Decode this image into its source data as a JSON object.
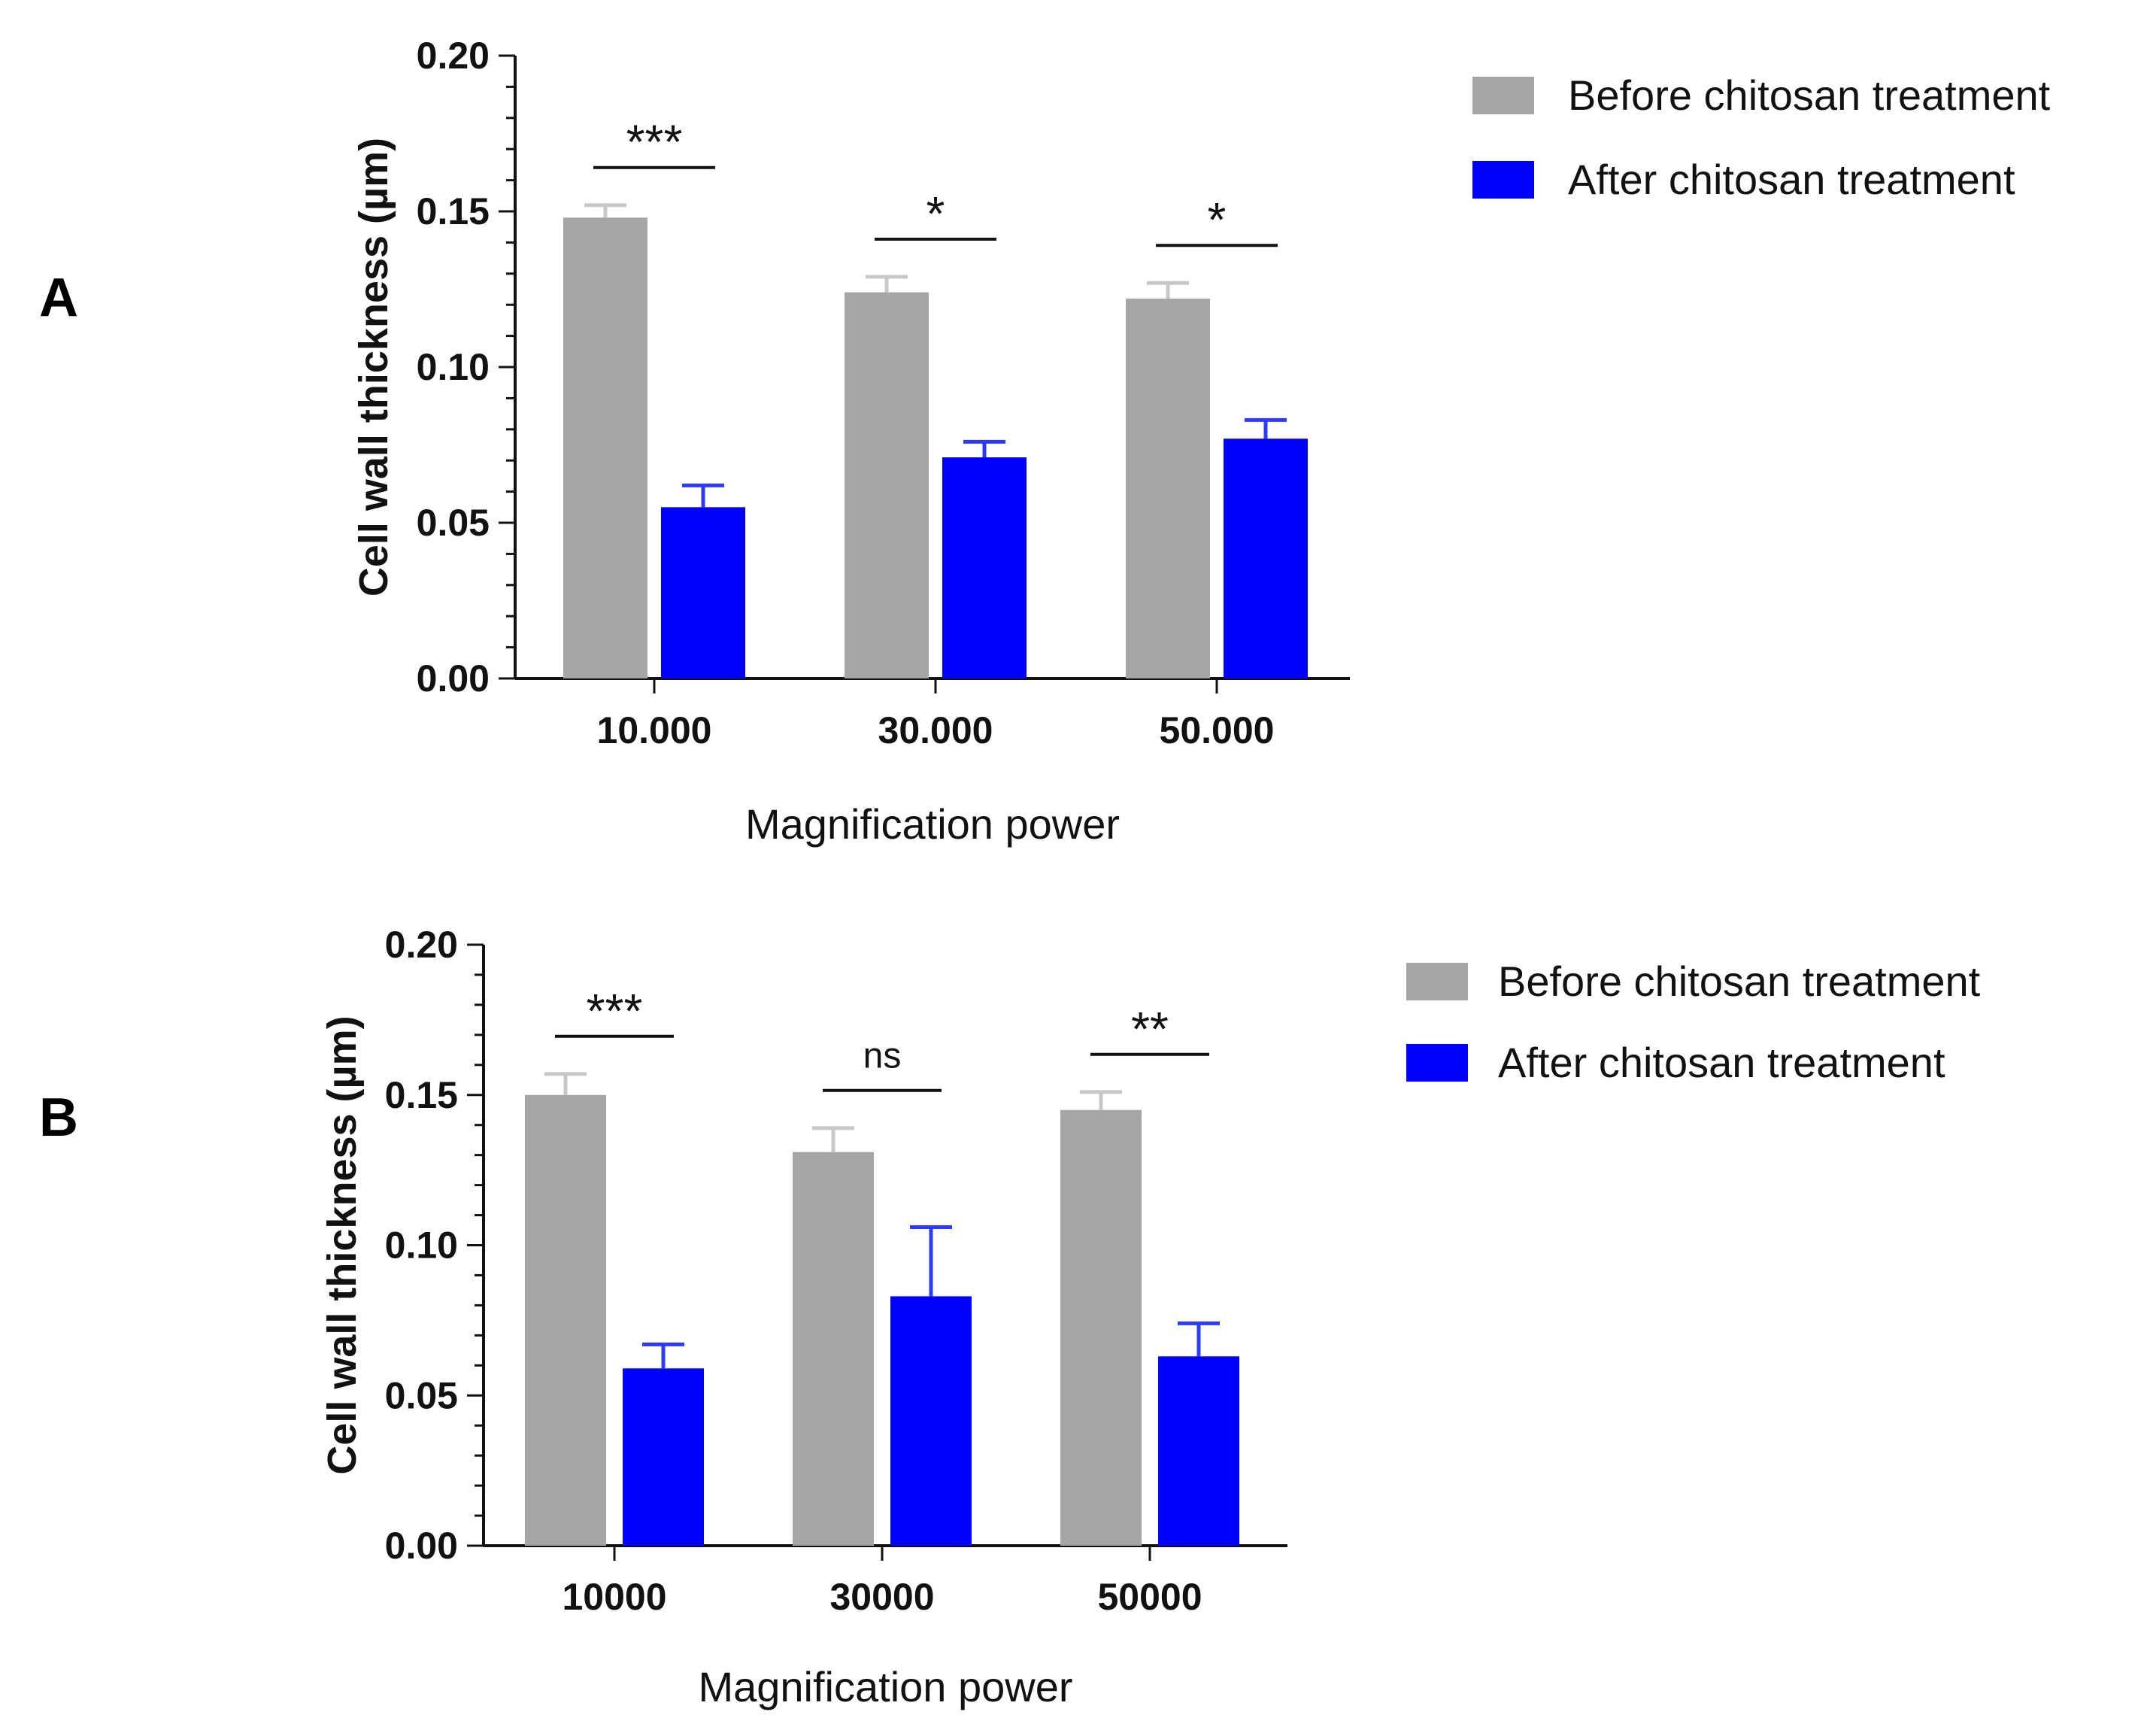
{
  "colors": {
    "before": "#A6A6A6",
    "before_err": "#C8C8C8",
    "after": "#0000FF",
    "after_err": "#2E3BFF",
    "axis": "#111111"
  },
  "chart_data": [
    {
      "panel_label": "A",
      "type": "bar",
      "title": "",
      "xlabel": "Magnification power",
      "ylabel": "Cell wall thickness (µm)",
      "ylim": [
        0,
        0.2
      ],
      "yticks": [
        "0.00",
        "0.05",
        "0.10",
        "0.15",
        "0.20"
      ],
      "categories": [
        "10.000",
        "30.000",
        "50.000"
      ],
      "series": [
        {
          "name": "Before chitosan treatment",
          "values": [
            0.148,
            0.124,
            0.122
          ],
          "errors": [
            0.004,
            0.005,
            0.005
          ]
        },
        {
          "name": "After chitosan treatment",
          "values": [
            0.055,
            0.071,
            0.077
          ],
          "errors": [
            0.007,
            0.005,
            0.006
          ]
        }
      ],
      "significance": [
        "***",
        "*",
        "*"
      ],
      "legend": "top-right"
    },
    {
      "panel_label": "B",
      "type": "bar",
      "title": "",
      "xlabel": "Magnification power",
      "ylabel": "Cell wall thickness (µm)",
      "ylim": [
        0,
        0.2
      ],
      "yticks": [
        "0.00",
        "0.05",
        "0.10",
        "0.15",
        "0.20"
      ],
      "categories": [
        "10000",
        "30000",
        "50000"
      ],
      "series": [
        {
          "name": "Before chitosan treatment",
          "values": [
            0.15,
            0.131,
            0.145
          ],
          "errors": [
            0.007,
            0.008,
            0.006
          ]
        },
        {
          "name": "After chitosan treatment",
          "values": [
            0.059,
            0.083,
            0.063
          ],
          "errors": [
            0.008,
            0.023,
            0.011
          ]
        }
      ],
      "significance": [
        "***",
        "ns",
        "**"
      ],
      "legend": "top-right"
    }
  ]
}
